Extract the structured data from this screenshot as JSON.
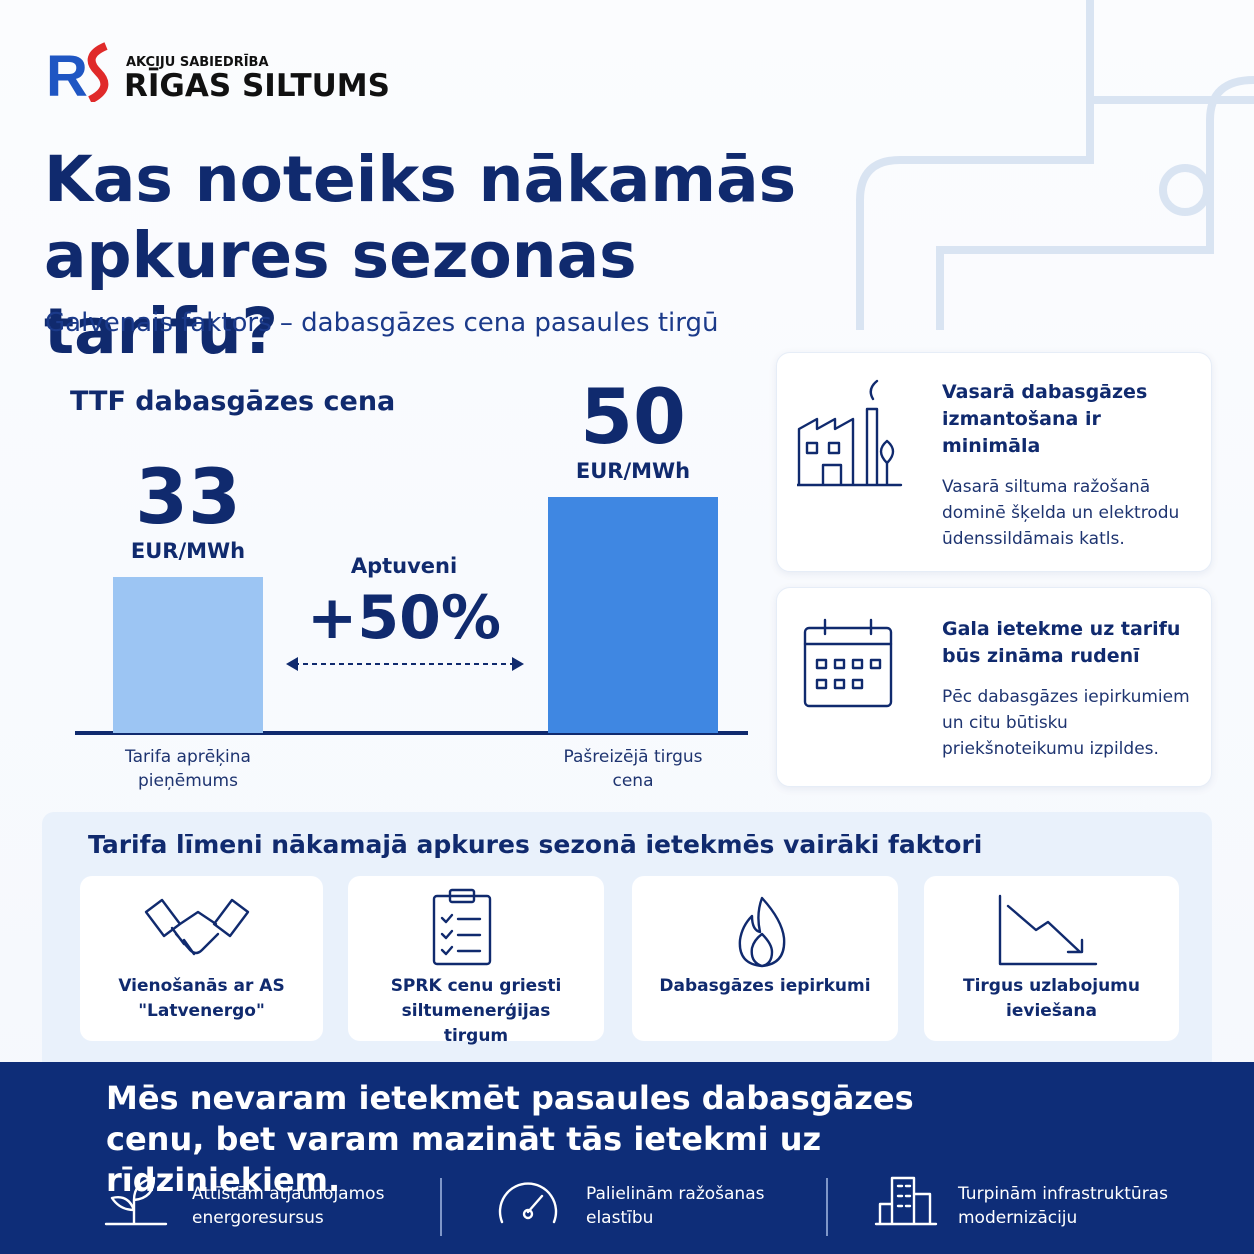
{
  "logo": {
    "tagline": "AKCIJU SABIEDRĪBA",
    "name": "RĪGAS SILTUMS"
  },
  "title": "Kas noteiks nākamās apkures sezonas tarifu?",
  "subtitle": "Galvenais faktors – dabasgāzes cena pasaules tirgū",
  "chart_data": {
    "type": "bar",
    "title": "TTF dabasgāzes cena",
    "categories": [
      "Tarifa aprēķina pieņēmums",
      "Pašreizējā tirgus cena"
    ],
    "values": [
      33,
      50
    ],
    "unit": "EUR/MWh",
    "colors": [
      "#9cc5f3",
      "#3f87e2"
    ],
    "annotation": {
      "label": "Aptuveni",
      "text": "+50%"
    }
  },
  "info_cards": [
    {
      "title": "Vasarā dabasgāzes izmantošana ir minimāla",
      "text": "Vasarā siltuma ražošanā dominē šķelda un elektrodu ūdenssildāmais katls."
    },
    {
      "title": "Gala ietekme uz tarifu būs zināma rudenī",
      "text": "Pēc dabasgāzes iepirkumiem un citu būtisku priekšnoteikumu izpildes."
    }
  ],
  "factors": {
    "title": "Tarifa līmeni nākamajā apkures sezonā ietekmēs vairāki faktori",
    "items": [
      "Vienošanās ar AS \"Latvenergo\"",
      "SPRK cenu griesti siltumenerģijas tirgum",
      "Dabasgāzes iepirkumi",
      "Tirgus uzlabojumu ieviešana"
    ]
  },
  "footer": {
    "statement": "Mēs nevaram ietekmēt pasaules dabasgāzes cenu, bet varam mazināt tās ietekmi uz rīdziniekiem.",
    "actions": [
      "Attīstām atjaunojamos energoresursus",
      "Palielinām ražošanas elastību",
      "Turpinām infrastruktūras modernizāciju"
    ]
  }
}
